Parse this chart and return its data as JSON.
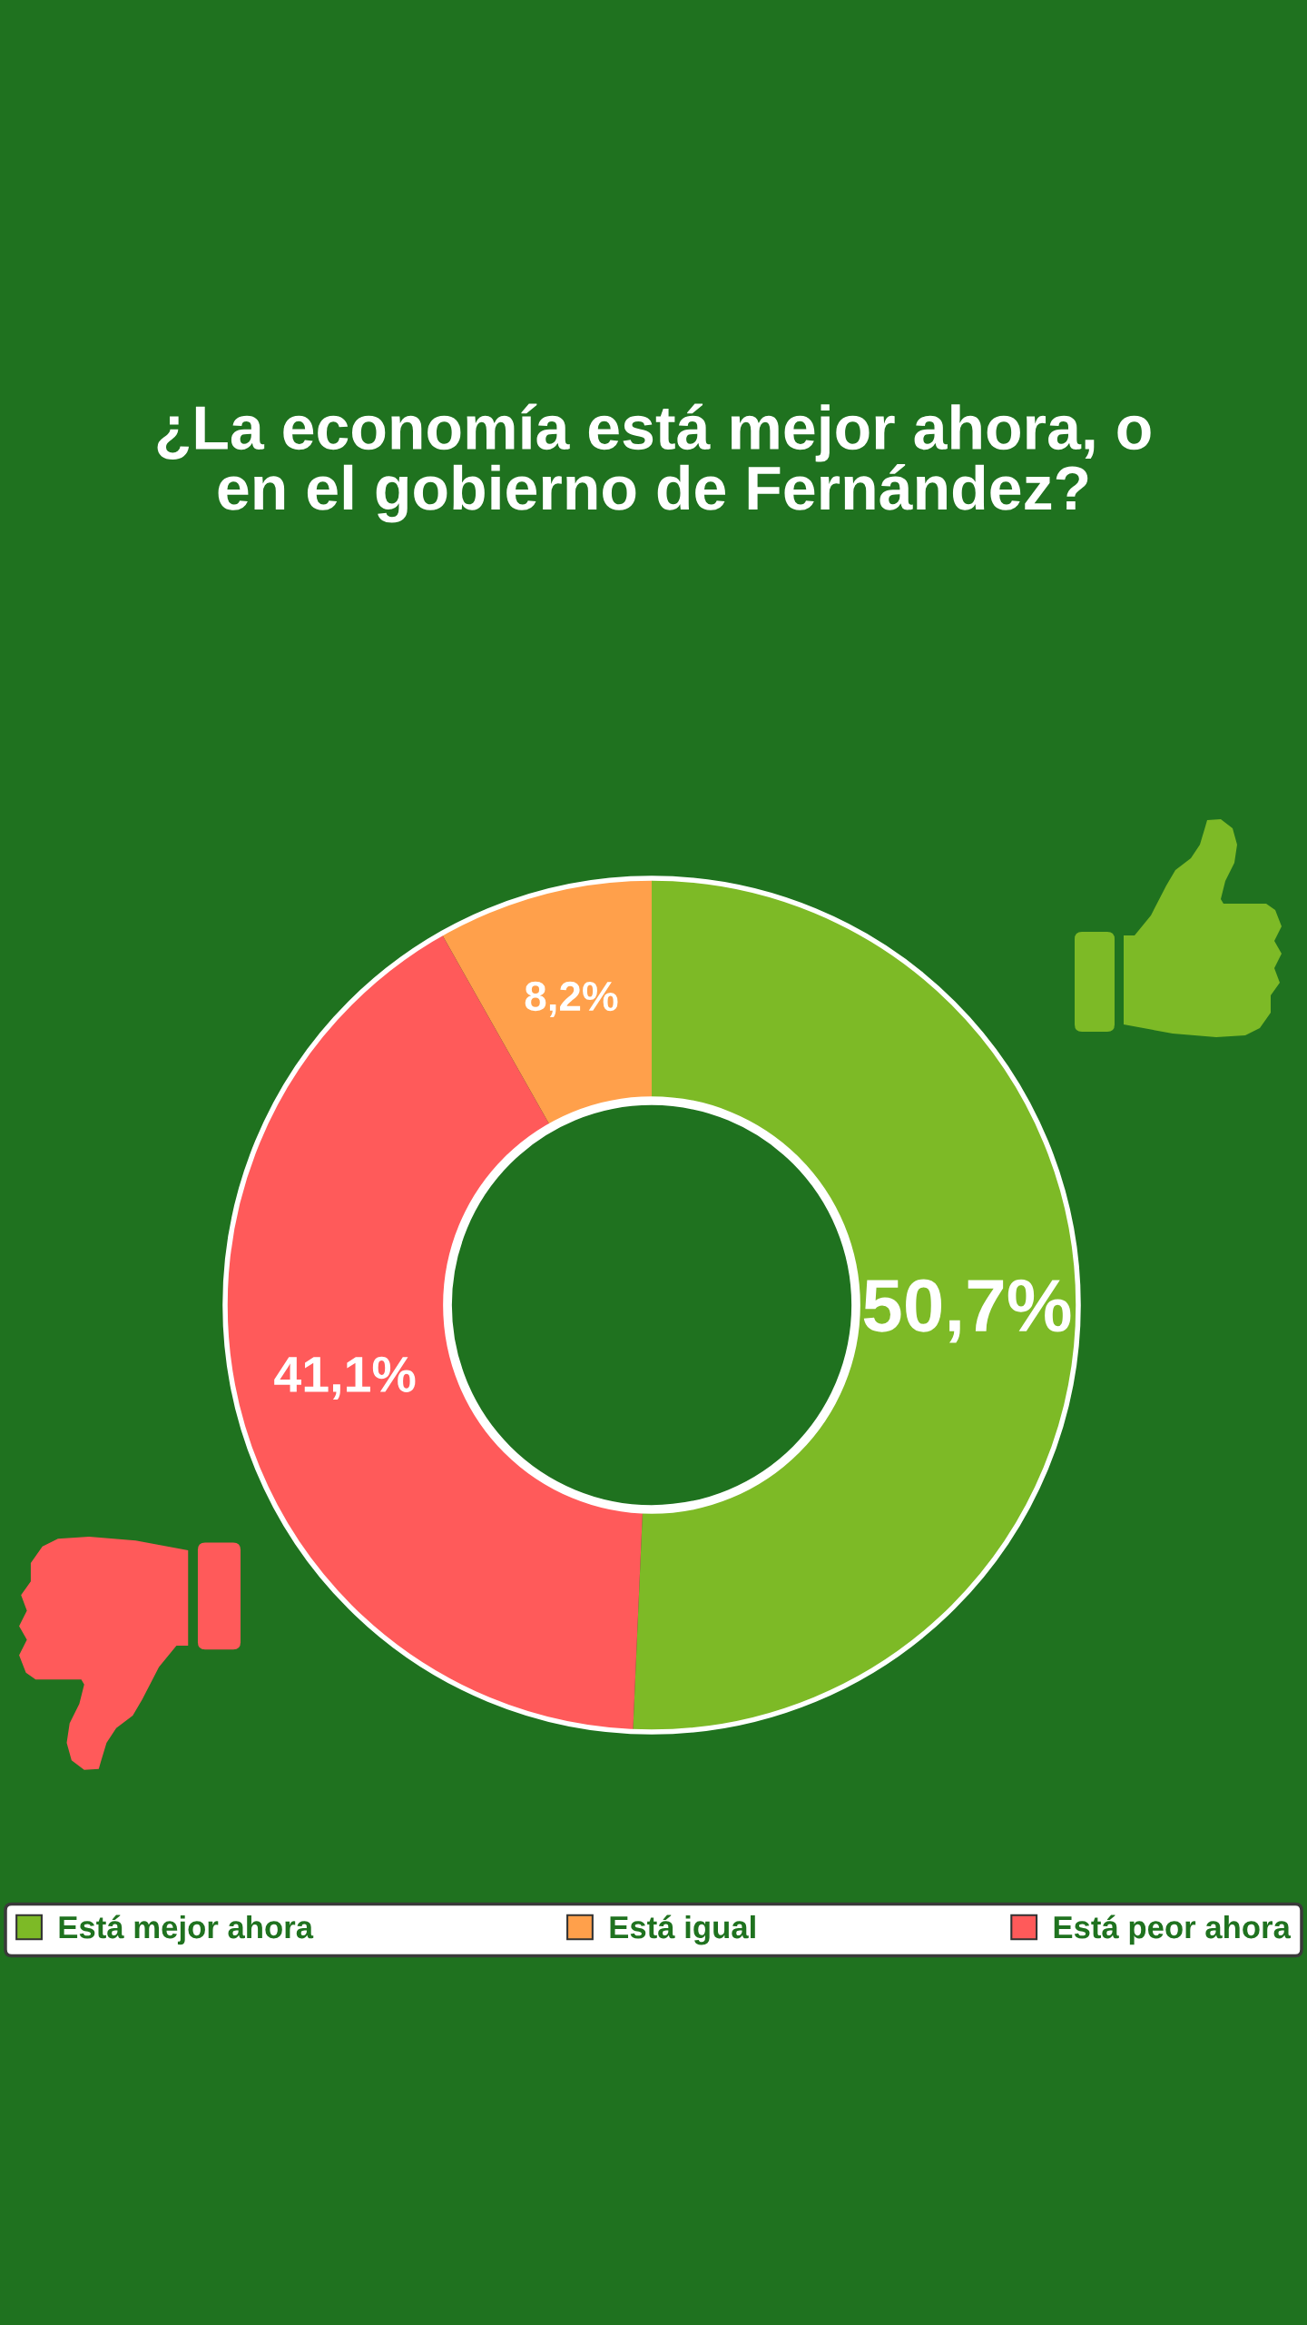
{
  "chart_data": {
    "type": "donut",
    "title": "¿La economía está mejor ahora, o\nen el gobierno de Fernández?",
    "categories": [
      "Está mejor ahora",
      "Está igual",
      "Está peor ahora"
    ],
    "values": [
      50.7,
      8.2,
      41.1
    ],
    "colors": [
      "#7dba26",
      "#ffa04b",
      "#ff5a5a"
    ],
    "value_labels": [
      "50,7%",
      "8,2%",
      "41,1%"
    ],
    "legend": "bottom"
  }
}
